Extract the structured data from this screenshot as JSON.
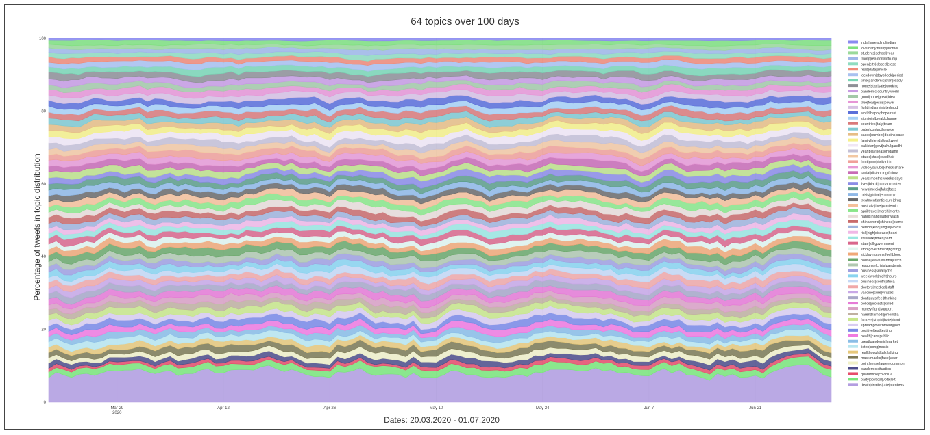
{
  "chart_data": {
    "type": "area",
    "stacked": true,
    "normalized_percent": true,
    "title": "64 topics over 100 days",
    "xlabel": "Dates: 20.03.2020 - 01.07.2020",
    "ylabel": "Percentage of tweets in topic distribution",
    "ylim": [
      0,
      100
    ],
    "yticks": [
      "0",
      "20",
      "40",
      "60",
      "80",
      "100"
    ],
    "xticks": [
      {
        "label": "Mar 29",
        "sub": "2020",
        "date": "2020-03-29"
      },
      {
        "label": "Apr 12",
        "sub": "",
        "date": "2020-04-12"
      },
      {
        "label": "Apr 26",
        "sub": "",
        "date": "2020-04-26"
      },
      {
        "label": "May 10",
        "sub": "",
        "date": "2020-05-10"
      },
      {
        "label": "May 24",
        "sub": "",
        "date": "2020-05-24"
      },
      {
        "label": "Jun 7",
        "sub": "",
        "date": "2020-06-07"
      },
      {
        "label": "Jun 21",
        "sub": "",
        "date": "2020-06-21"
      }
    ],
    "x_range": [
      "2020-03-20",
      "2020-07-01"
    ],
    "grid": true,
    "legend_position": "right",
    "series": [
      {
        "name": "india|spreading|indian",
        "color": "#8a8af0",
        "value": 0.6
      },
      {
        "name": "love|baby|funny|brother",
        "color": "#7fe07f",
        "value": 1.2
      },
      {
        "name": "students|school|year",
        "color": "#9ad99a",
        "value": 1.1
      },
      {
        "name": "trump|realdonaldtrump",
        "color": "#9fb7e8",
        "value": 1.3
      },
      {
        "name": "open|city|closed|close",
        "color": "#8fdcc0",
        "value": 1.2
      },
      {
        "name": "read|data|article",
        "color": "#f08a78",
        "value": 1.3
      },
      {
        "name": "lockdown|days|lock|period",
        "color": "#a9c1f0",
        "value": 1.4
      },
      {
        "name": "time|pandemic|start|ready",
        "color": "#7ad6b5",
        "value": 1.5
      },
      {
        "name": "home|stay|safe|working",
        "color": "#8e8f96",
        "value": 1.6
      },
      {
        "name": "pandemic|country|world",
        "color": "#c79be3",
        "value": 1.5
      },
      {
        "name": "good|hope|great|idea",
        "color": "#a3c9a8",
        "value": 1.4
      },
      {
        "name": "true|fear|jesus|power",
        "color": "#e695d6",
        "value": 1.6
      },
      {
        "name": "fight|india|minister|modi",
        "color": "#d6c1e3",
        "value": 1.5
      },
      {
        "name": "world|happy|hope|rest",
        "color": "#5b6fd9",
        "value": 1.5
      },
      {
        "name": "sign|join|break|change",
        "color": "#a7d0f5",
        "value": 1.5
      },
      {
        "name": "countries|italy|team",
        "color": "#d97a7a",
        "value": 1.6
      },
      {
        "name": "order|contact|service",
        "color": "#7fc9d1",
        "value": 1.5
      },
      {
        "name": "cases|number|deaths|case",
        "color": "#e6bd85",
        "value": 1.7
      },
      {
        "name": "family|friends|lost|tweet",
        "color": "#f5f08a",
        "value": 1.6
      },
      {
        "name": "pakistan|govt|rahulgandhi",
        "color": "#f0e6f5",
        "value": 1.8
      },
      {
        "name": "year|play|season|game",
        "color": "#c4c0d6",
        "value": 1.6
      },
      {
        "name": "states|state|road|hair",
        "color": "#f2c8a3",
        "value": 1.5
      },
      {
        "name": "food|poor|daily|rich",
        "color": "#f0a09a",
        "value": 1.6
      },
      {
        "name": "video|youtube|check|share",
        "color": "#e69ad6",
        "value": 1.5
      },
      {
        "name": "social|distancing|follow",
        "color": "#c86bb5",
        "value": 1.7
      },
      {
        "name": "years|months|weeks|days",
        "color": "#bde08a",
        "value": 1.6
      },
      {
        "name": "lives|black|human|matter",
        "color": "#8c8ce6",
        "value": 1.6
      },
      {
        "name": "news|media|fake|facts",
        "color": "#5d9e8a",
        "value": 1.5
      },
      {
        "name": "crisis|global|economy",
        "color": "#8fb8e6",
        "value": 1.5
      },
      {
        "name": "treatment|antic|cure|drug",
        "color": "#6b6b6b",
        "value": 1.4
      },
      {
        "name": "australia|live|pandemic",
        "color": "#f5c09a",
        "value": 1.5
      },
      {
        "name": "april|travel|march|month",
        "color": "#8ae68a",
        "value": 1.5
      },
      {
        "name": "hands|hand|water|wash",
        "color": "#e8dcd8",
        "value": 1.6
      },
      {
        "name": "china|world|chinese|blame",
        "color": "#c96b6b",
        "value": 1.6
      },
      {
        "name": "person|kind|single|words",
        "color": "#a0b4dc",
        "value": 1.5
      },
      {
        "name": "risk|high|disease|heart",
        "color": "#f0b8e6",
        "value": 1.4
      },
      {
        "name": "life|work|times|hard",
        "color": "#9ae6e0",
        "value": 1.5
      },
      {
        "name": "state|kill|government",
        "color": "#d9678c",
        "value": 1.5
      },
      {
        "name": "stop|government|fighting",
        "color": "#dff5ef",
        "value": 1.4
      },
      {
        "name": "sick|symptoms|feel|blood",
        "color": "#f0a878",
        "value": 1.6
      },
      {
        "name": "house|leave|wanna|catch",
        "color": "#6ba86b",
        "value": 1.8
      },
      {
        "name": "response|crisis|pandemic",
        "color": "#b0c8b0",
        "value": 1.5
      },
      {
        "name": "business|small|jobs",
        "color": "#a0a0e0",
        "value": 1.4
      },
      {
        "name": "week|work|night|hours",
        "color": "#8ad4ef",
        "value": 1.5
      },
      {
        "name": "business|south|africa",
        "color": "#c4d8f5",
        "value": 1.6
      },
      {
        "name": "doctors|medical|staff",
        "color": "#f0a8a8",
        "value": 1.5
      },
      {
        "name": "vaccine|cure|viruses",
        "color": "#c8a8e6",
        "value": 1.4
      },
      {
        "name": "dont|guys|feel|thinking",
        "color": "#a8a8c8",
        "value": 1.5
      },
      {
        "name": "police|protests|killed",
        "color": "#e67ad6",
        "value": 1.6
      },
      {
        "name": "money|fight|support",
        "color": "#d9a0c4",
        "value": 1.5
      },
      {
        "name": "narendramodi|pmoindia",
        "color": "#c0b0a0",
        "value": 1.5
      },
      {
        "name": "fuckers|stupid|hate|dumb",
        "color": "#c8e68a",
        "value": 1.6
      },
      {
        "name": "spread|government|govt",
        "color": "#d8ccf0",
        "value": 1.5
      },
      {
        "name": "positive|test|testing",
        "color": "#7a8ae6",
        "value": 1.6
      },
      {
        "name": "health|care|public",
        "color": "#f07ae0",
        "value": 1.5
      },
      {
        "name": "great|pandemic|market",
        "color": "#8abde6",
        "value": 1.5
      },
      {
        "name": "listen|song|music",
        "color": "#b8e6f0",
        "value": 1.5
      },
      {
        "name": "real|thought|talk|talking",
        "color": "#e6c87a",
        "value": 1.4
      },
      {
        "name": "mask|masks|face|wear",
        "color": "#7d7a55",
        "value": 1.6
      },
      {
        "name": "point|sense|agree|common",
        "color": "#f0f0c8",
        "value": 1.4
      },
      {
        "name": "pandemic|situation",
        "color": "#4d4d8a",
        "value": 1.3
      },
      {
        "name": "quarantine|covid19",
        "color": "#e64d6b",
        "value": 0.9
      },
      {
        "name": "party|political|vote|left",
        "color": "#7ae67a",
        "value": 1.8
      },
      {
        "name": "death|deaths|rate|numbers",
        "color": "#b39de0",
        "value": 8.0
      }
    ]
  }
}
